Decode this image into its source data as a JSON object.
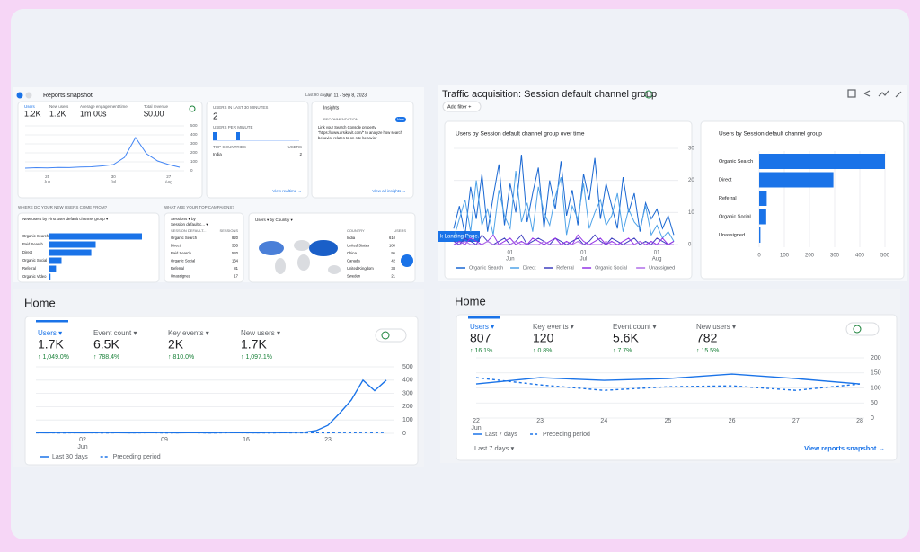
{
  "snapshot": {
    "title": "Reports snapshot",
    "range": "Last 90 days",
    "date": "Jun 11 - Sep 8, 2023",
    "metrics": [
      {
        "label": "Users",
        "value": "1.2K"
      },
      {
        "label": "New users",
        "value": "1.2K"
      },
      {
        "label": "Average engagement time",
        "value": "1m 00s"
      },
      {
        "label": "Total revenue",
        "value": "$0.00"
      }
    ],
    "chart": {
      "type": "line",
      "categories": [
        null,
        null,
        {
          "day": "25",
          "month": "Jun"
        },
        null,
        null,
        null,
        null,
        null,
        {
          "day": "30",
          "month": "Jul"
        },
        null,
        null,
        null,
        null,
        {
          "day": "27",
          "month": "Aug"
        },
        null
      ],
      "series": [
        {
          "name": "Users",
          "color": "#4285f4",
          "values": [
            30,
            35,
            32,
            38,
            36,
            42,
            45,
            55,
            70,
            150,
            370,
            190,
            110,
            70,
            40
          ]
        }
      ],
      "ylim": [
        0,
        500
      ],
      "yticks": [
        0,
        100,
        200,
        300,
        400,
        500
      ]
    },
    "realtime": {
      "label": "USERS IN LAST 30 MINUTES",
      "value": "2",
      "sub": "USERS PER MINUTE",
      "head": [
        "TOP COUNTRIES",
        "USERS"
      ],
      "rows": [
        [
          "India",
          "2"
        ]
      ],
      "link": "View realtime →"
    },
    "insights": {
      "title": "Insights",
      "badge": "RECOMMENDATION",
      "tag": "New",
      "lines": [
        "Link your Search Console property",
        "\"https://www.drsikavit.com/\" to analyze how search",
        "behavior relates to on-site behavior"
      ],
      "link": "View all insights →"
    },
    "new_users": {
      "title": "WHERE DO YOUR NEW USERS COME FROM?",
      "subtitle": "New users by First user default channel group ▾",
      "categories": [
        "Organic Search",
        "Paid Search",
        "Direct",
        "Organic Social",
        "Referral",
        "Organic Video"
      ],
      "values": [
        420,
        210,
        190,
        55,
        30,
        5
      ],
      "color": "#1a73e8"
    },
    "campaigns": {
      "title": "WHAT ARE YOUR TOP CAMPAIGNS?",
      "subtitle": [
        "Sessions ▾ by",
        "Session default c... ▾"
      ],
      "head": [
        "SESSION DEFAULT...",
        "SESSIONS"
      ],
      "rows": [
        [
          "Organic Search",
          "820"
        ],
        [
          "Direct",
          "555"
        ],
        [
          "Paid Search",
          "520"
        ],
        [
          "Organic Social",
          "134"
        ],
        [
          "Referral",
          "81"
        ],
        [
          "Unassigned",
          "17"
        ]
      ]
    },
    "country": {
      "title": "Users ▾ by Country ▾",
      "head": [
        "COUNTRY",
        "USERS"
      ],
      "rows": [
        [
          "India",
          "610"
        ],
        [
          "United States",
          "180"
        ],
        [
          "China",
          "95"
        ],
        [
          "Canada",
          "42"
        ],
        [
          "United Kingdom",
          "38"
        ],
        [
          "Sweden",
          "21"
        ]
      ]
    }
  },
  "traffic": {
    "title": "Traffic acquisition: Session default channel group",
    "filter": "Add filter +",
    "tooltip": "k Landing Page.",
    "over_time": {
      "type": "line",
      "title": "Users by Session default channel group over time",
      "categories": [
        null,
        null,
        null,
        null,
        null,
        null,
        null,
        null,
        null,
        null,
        {
          "day": "01",
          "month": "Jun"
        },
        null,
        null,
        null,
        null,
        null,
        null,
        null,
        null,
        null,
        null,
        null,
        null,
        {
          "day": "01",
          "month": "Jul"
        },
        null,
        null,
        null,
        null,
        null,
        null,
        null,
        null,
        null,
        null,
        null,
        null,
        {
          "day": "01",
          "month": "Aug"
        },
        null,
        null,
        null
      ],
      "series": [
        {
          "name": "Organic Search",
          "color": "#1967d2",
          "values": [
            5,
            12,
            3,
            18,
            8,
            22,
            4,
            15,
            25,
            6,
            19,
            10,
            28,
            7,
            16,
            24,
            5,
            20,
            11,
            26,
            9,
            17,
            6,
            22,
            14,
            27,
            8,
            19,
            12,
            5,
            21,
            10,
            16,
            4,
            13,
            8,
            11,
            5,
            9,
            3
          ]
        },
        {
          "name": "Direct",
          "color": "#4fa3e8",
          "values": [
            2,
            8,
            14,
            4,
            20,
            6,
            11,
            3,
            17,
            9,
            5,
            23,
            7,
            13,
            4,
            18,
            10,
            6,
            15,
            21,
            3,
            12,
            8,
            19,
            5,
            10,
            14,
            6,
            9,
            16,
            4,
            11,
            7,
            5,
            12,
            3,
            6,
            2,
            4,
            1
          ]
        },
        {
          "name": "Referral",
          "color": "#3f3fbf",
          "values": [
            1,
            0,
            2,
            1,
            0,
            3,
            1,
            0,
            1,
            2,
            0,
            1,
            3,
            0,
            1,
            2,
            1,
            0,
            2,
            1,
            0,
            1,
            2,
            0,
            1,
            3,
            1,
            0,
            2,
            1,
            0,
            1,
            2,
            0,
            1,
            0,
            2,
            1,
            0,
            1
          ]
        },
        {
          "name": "Organic Social",
          "color": "#9334e6",
          "values": [
            0,
            1,
            0,
            2,
            1,
            0,
            1,
            3,
            0,
            1,
            2,
            0,
            1,
            0,
            2,
            1,
            0,
            1,
            2,
            0,
            1,
            0,
            3,
            1,
            0,
            1,
            2,
            0,
            1,
            0,
            1,
            2,
            0,
            1,
            0,
            1,
            0,
            2,
            0,
            1
          ]
        },
        {
          "name": "Unassigned",
          "color": "#b06ee8",
          "values": [
            0,
            0,
            1,
            0,
            0,
            0,
            1,
            0,
            0,
            0,
            0,
            1,
            0,
            0,
            0,
            0,
            1,
            0,
            0,
            0,
            0,
            0,
            1,
            0,
            0,
            0,
            0,
            1,
            0,
            0,
            0,
            0,
            0,
            1,
            0,
            0,
            0,
            0,
            0,
            0
          ]
        }
      ],
      "ylim": [
        0,
        30
      ],
      "yticks": [
        0,
        10,
        20,
        30
      ]
    },
    "by_channel": {
      "type": "bar",
      "title": "Users by Session default channel group",
      "categories": [
        "Organic Search",
        "Direct",
        "Referral",
        "Organic Social",
        "Unassigned"
      ],
      "values": [
        500,
        295,
        30,
        28,
        5
      ],
      "color": "#1a73e8",
      "xlim": [
        0,
        500
      ],
      "xticks": [
        0,
        100,
        200,
        300,
        400,
        500
      ]
    }
  },
  "home_a": {
    "title": "Home",
    "metrics": [
      {
        "label": "Users ▾",
        "value": "1.7K",
        "delta": "↑ 1,049.0%"
      },
      {
        "label": "Event count ▾",
        "value": "6.5K",
        "delta": "↑ 788.4%"
      },
      {
        "label": "Key events ▾",
        "value": "2K",
        "delta": "↑ 810.0%"
      },
      {
        "label": "New users ▾",
        "value": "1.7K",
        "delta": "↑ 1,097.1%"
      }
    ],
    "chart": {
      "type": "line",
      "categories": [
        null,
        null,
        null,
        null,
        {
          "day": "02",
          "month": "Jun"
        },
        null,
        null,
        null,
        null,
        null,
        null,
        {
          "day": "09"
        },
        null,
        null,
        null,
        null,
        null,
        null,
        {
          "day": "16"
        },
        null,
        null,
        null,
        null,
        null,
        null,
        {
          "day": "23"
        },
        null,
        null,
        null,
        null,
        null
      ],
      "series": [
        {
          "name": "Last 30 days",
          "color": "#1a73e8",
          "values": [
            5,
            4,
            6,
            5,
            4,
            5,
            6,
            5,
            4,
            5,
            5,
            6,
            4,
            5,
            5,
            4,
            6,
            5,
            5,
            4,
            6,
            5,
            6,
            8,
            20,
            60,
            150,
            250,
            400,
            320,
            400
          ]
        },
        {
          "name": "Preceding period",
          "color": "#1a73e8",
          "dashed": true,
          "values": [
            4,
            5,
            3,
            4,
            5,
            4,
            3,
            5,
            4,
            4,
            5,
            3,
            4,
            5,
            4,
            3,
            4,
            5,
            4,
            4,
            3,
            5,
            4,
            4,
            5,
            4,
            6,
            5,
            6,
            5,
            7
          ]
        }
      ],
      "ylim": [
        0,
        500
      ],
      "yticks": [
        0,
        100,
        200,
        300,
        400,
        500
      ]
    }
  },
  "home_b": {
    "title": "Home",
    "metrics": [
      {
        "label": "Users ▾",
        "value": "807",
        "delta": "↑ 16.1%"
      },
      {
        "label": "Key events ▾",
        "value": "120",
        "delta": "↑ 0.8%"
      },
      {
        "label": "Event count ▾",
        "value": "5.6K",
        "delta": "↑ 7.7%"
      },
      {
        "label": "New users ▾",
        "value": "782",
        "delta": "↑ 15.5%"
      }
    ],
    "chart": {
      "type": "line",
      "categories": [
        {
          "day": "22",
          "month": "Jun"
        },
        {
          "day": "23"
        },
        {
          "day": "24"
        },
        {
          "day": "25"
        },
        {
          "day": "26"
        },
        {
          "day": "27"
        },
        {
          "day": "28"
        }
      ],
      "series": [
        {
          "name": "Last 7 days",
          "color": "#1a73e8",
          "values": [
            113,
            134,
            125,
            131,
            146,
            131,
            113
          ]
        },
        {
          "name": "Preceding period",
          "color": "#1a73e8",
          "dashed": true,
          "values": [
            134,
            110,
            92,
            104,
            107,
            92,
            113
          ]
        }
      ],
      "ylim": [
        0,
        200
      ],
      "yticks": [
        0,
        50,
        100,
        150,
        200
      ]
    },
    "range": "Last 7 days ▾",
    "link": "View reports snapshot →"
  }
}
